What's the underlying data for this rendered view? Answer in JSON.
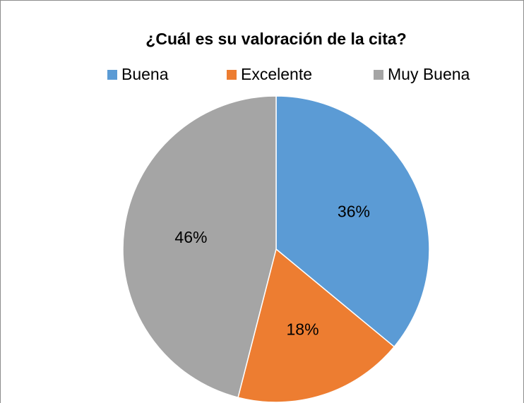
{
  "chart_data": {
    "type": "pie",
    "title": "¿Cuál es su valoración de la cita?",
    "categories": [
      "Buena",
      "Excelente",
      "Muy Buena"
    ],
    "values": [
      36,
      18,
      46
    ],
    "value_labels": [
      "36%",
      "18%",
      "46%"
    ],
    "colors": [
      "#5b9bd5",
      "#ed7d31",
      "#a5a5a5"
    ],
    "legend": "top"
  }
}
